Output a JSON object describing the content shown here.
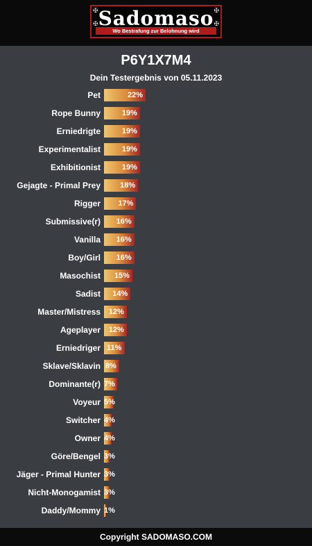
{
  "header": {
    "logo_text": "Sadomaso",
    "tagline": "Wo Bestrafung zur Belohnung wird"
  },
  "result": {
    "code": "P6Y1X7M4",
    "subtitle": "Dein Testergebnis von 05.11.2023"
  },
  "chart_data": {
    "type": "bar",
    "orientation": "horizontal",
    "value_unit": "%",
    "categories": [
      "Pet",
      "Rope Bunny",
      "Erniedrigte",
      "Experimentalist",
      "Exhibitionist",
      "Gejagte - Primal Prey",
      "Rigger",
      "Submissive(r)",
      "Vanilla",
      "Boy/Girl",
      "Masochist",
      "Sadist",
      "Master/Mistress",
      "Ageplayer",
      "Erniedriger",
      "Sklave/Sklavin",
      "Dominante(r)",
      "Voyeur",
      "Switcher",
      "Owner",
      "Göre/Bengel",
      "Jäger - Primal Hunter",
      "Nicht-Monogamist",
      "Daddy/Mommy"
    ],
    "values": [
      22,
      19,
      19,
      19,
      19,
      18,
      17,
      16,
      16,
      16,
      15,
      14,
      12,
      12,
      11,
      8,
      7,
      5,
      4,
      4,
      3,
      3,
      3,
      1
    ],
    "labels": [
      "22%",
      "19%",
      "19%",
      "19%",
      "19%",
      "18%",
      "17%",
      "16%",
      "16%",
      "16%",
      "15%",
      "14%",
      "12%",
      "12%",
      "11%",
      "8%",
      "7%",
      "5%",
      "4%",
      "4%",
      "3%",
      "3%",
      "3%",
      "1%"
    ],
    "colors": {
      "bar_start": "#f0c66e",
      "bar_mid": "#d98a3c",
      "bar_end": "#a0282a"
    }
  },
  "footer": {
    "copyright": "Copyright SADOMASO.COM"
  }
}
